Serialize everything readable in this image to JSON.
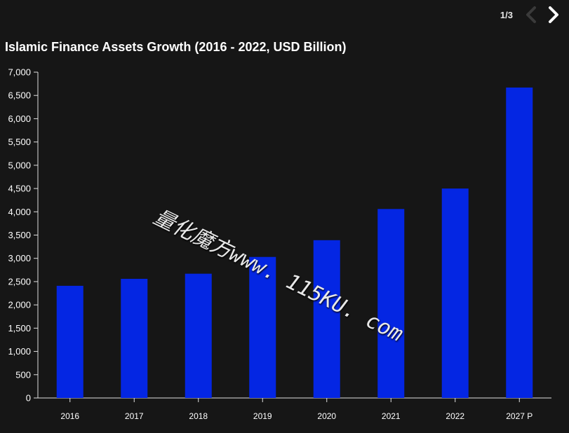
{
  "pager": {
    "label": "1/3"
  },
  "colors": {
    "bar": "#0426E3",
    "axis": "#e0e0e0",
    "tick_text": "#ffffff",
    "background": "#161616"
  },
  "icons": {
    "prev": "chevron-left-icon",
    "next": "chevron-right-icon"
  },
  "watermark": "量化魔方www. 115KU. com",
  "chart_data": {
    "type": "bar",
    "title": "Islamic Finance Assets Growth (2016 - 2022, USD Billion)",
    "xlabel": "",
    "ylabel": "",
    "categories": [
      "2016",
      "2017",
      "2018",
      "2019",
      "2020",
      "2021",
      "2022",
      "2027 P"
    ],
    "values": [
      2410,
      2560,
      2670,
      3030,
      3390,
      4060,
      4500,
      6670
    ],
    "ylim": [
      0,
      7000
    ],
    "yticks": [
      0,
      500,
      1000,
      1500,
      2000,
      2500,
      3000,
      3500,
      4000,
      4500,
      5000,
      5500,
      6000,
      6500,
      7000
    ],
    "ytick_labels": [
      "0",
      "500",
      "1,000",
      "1,500",
      "2,000",
      "2,500",
      "3,000",
      "3,500",
      "4,000",
      "4,500",
      "5,000",
      "5,500",
      "6,000",
      "6,500",
      "7,000"
    ],
    "grid": false,
    "legend": "none"
  }
}
